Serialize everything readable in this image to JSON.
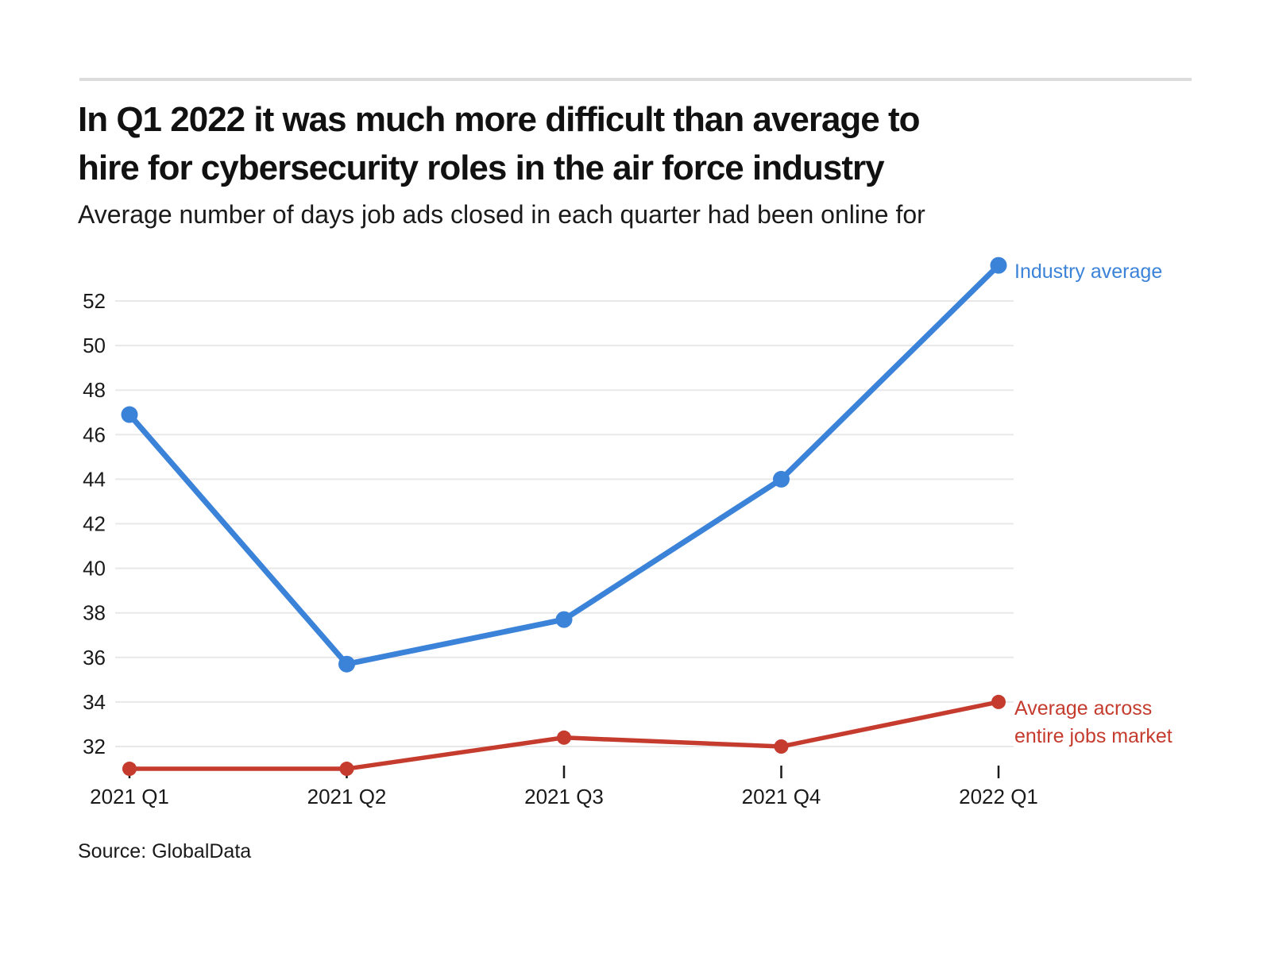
{
  "header": {
    "title": "In Q1 2022 it was much more difficult than average to\nhire for cybersecurity roles in the air force industry",
    "subtitle": "Average number of days job ads closed in each quarter had been online for"
  },
  "footer": {
    "source": "Source: GlobalData"
  },
  "chart_data": {
    "type": "line",
    "title": "In Q1 2022 it was much more difficult than average to hire for cybersecurity roles in the air force industry",
    "subtitle": "Average number of days job ads closed in each quarter had been online for",
    "categories": [
      "2021 Q1",
      "2021 Q2",
      "2021 Q3",
      "2021 Q4",
      "2022 Q1"
    ],
    "series": [
      {
        "name": "Industry average",
        "legend_label": "Industry average",
        "color": "#3b82d9",
        "values": [
          46.9,
          35.7,
          37.7,
          44,
          53.6
        ]
      },
      {
        "name": "Average across entire jobs market",
        "legend_label": "Average across\nentire jobs market",
        "color": "#c53b2d",
        "values": [
          31,
          31,
          32.4,
          32,
          34
        ]
      }
    ],
    "yticks": [
      32,
      34,
      36,
      38,
      40,
      42,
      44,
      46,
      48,
      50,
      52
    ],
    "ylim": [
      30.5,
      54
    ],
    "grid": true,
    "legend_position": "right-of-last-point",
    "source": "Source: GlobalData",
    "gridline_color": "#e8e8e8",
    "axis_text_color": "#1a1a1a",
    "tick_color": "#1a1a1a"
  }
}
